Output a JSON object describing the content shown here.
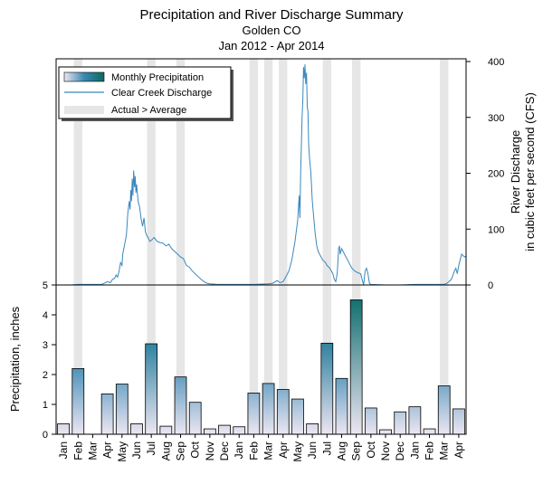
{
  "chart_data": {
    "type": "bar+line",
    "title": "Precipitation and River Discharge Summary",
    "subtitle": "Golden CO",
    "period": "Jan 2012 - Apr 2014",
    "legend": {
      "position": "top-left",
      "entries": [
        "Monthly Precipitation",
        "Clear Creek Discharge",
        "Actual > Average"
      ]
    },
    "months": [
      "Jan",
      "Feb",
      "Mar",
      "Apr",
      "May",
      "Jun",
      "Jul",
      "Aug",
      "Sep",
      "Oct",
      "Nov",
      "Dec",
      "Jan",
      "Feb",
      "Mar",
      "Apr",
      "May",
      "Jun",
      "Jul",
      "Aug",
      "Sep",
      "Oct",
      "Nov",
      "Dec",
      "Jan",
      "Feb",
      "Mar",
      "Apr"
    ],
    "precipitation": {
      "name": "Monthly Precipitation",
      "ylabel": "Precipitation, inches",
      "ylim": [
        0,
        5
      ],
      "yticks": [
        0,
        1,
        2,
        3,
        4,
        5
      ],
      "values": [
        0.35,
        2.2,
        0.0,
        1.35,
        1.68,
        0.35,
        3.03,
        0.27,
        1.92,
        1.07,
        0.18,
        0.3,
        0.25,
        1.38,
        1.7,
        1.5,
        1.18,
        0.35,
        3.05,
        1.87,
        4.5,
        0.88,
        0.15,
        0.75,
        0.92,
        0.18,
        1.62,
        0.85
      ]
    },
    "discharge": {
      "name": "Clear Creek Discharge",
      "ylabel_line1": "River Discharge",
      "ylabel_line2": "in cubic feet per second (CFS)",
      "ylim": [
        0,
        400
      ],
      "yticks": [
        0,
        100,
        200,
        300,
        400
      ],
      "points": [
        [
          0,
          0
        ],
        [
          0.5,
          0
        ],
        [
          1,
          1
        ],
        [
          2,
          1
        ],
        [
          2.6,
          1
        ],
        [
          2.8,
          3
        ],
        [
          3.0,
          6
        ],
        [
          3.2,
          4
        ],
        [
          3.35,
          10
        ],
        [
          3.5,
          12
        ],
        [
          3.6,
          18
        ],
        [
          3.7,
          14
        ],
        [
          3.8,
          25
        ],
        [
          3.9,
          40
        ],
        [
          4.0,
          35
        ],
        [
          4.05,
          55
        ],
        [
          4.15,
          68
        ],
        [
          4.2,
          75
        ],
        [
          4.3,
          90
        ],
        [
          4.35,
          110
        ],
        [
          4.4,
          130
        ],
        [
          4.5,
          150
        ],
        [
          4.55,
          135
        ],
        [
          4.6,
          170
        ],
        [
          4.65,
          150
        ],
        [
          4.7,
          190
        ],
        [
          4.75,
          160
        ],
        [
          4.8,
          205
        ],
        [
          4.85,
          175
        ],
        [
          4.9,
          195
        ],
        [
          4.95,
          165
        ],
        [
          5.0,
          180
        ],
        [
          5.1,
          150
        ],
        [
          5.2,
          140
        ],
        [
          5.3,
          120
        ],
        [
          5.4,
          105
        ],
        [
          5.5,
          120
        ],
        [
          5.6,
          95
        ],
        [
          5.7,
          88
        ],
        [
          5.8,
          84
        ],
        [
          5.9,
          78
        ],
        [
          6.0,
          80
        ],
        [
          6.2,
          85
        ],
        [
          6.4,
          78
        ],
        [
          6.6,
          76
        ],
        [
          6.8,
          75
        ],
        [
          7.0,
          70
        ],
        [
          7.2,
          73
        ],
        [
          7.4,
          65
        ],
        [
          7.6,
          60
        ],
        [
          7.8,
          55
        ],
        [
          8.0,
          50
        ],
        [
          8.2,
          47
        ],
        [
          8.4,
          35
        ],
        [
          8.6,
          32
        ],
        [
          8.8,
          25
        ],
        [
          9.0,
          20
        ],
        [
          9.2,
          15
        ],
        [
          9.4,
          10
        ],
        [
          9.6,
          6
        ],
        [
          9.8,
          3
        ],
        [
          10.0,
          2
        ],
        [
          10.5,
          1
        ],
        [
          11,
          1
        ],
        [
          12,
          1
        ],
        [
          13,
          1
        ],
        [
          14,
          2
        ],
        [
          14.3,
          3
        ],
        [
          14.6,
          8
        ],
        [
          14.8,
          4
        ],
        [
          15.0,
          6
        ],
        [
          15.2,
          15
        ],
        [
          15.4,
          25
        ],
        [
          15.5,
          35
        ],
        [
          15.6,
          45
        ],
        [
          15.7,
          60
        ],
        [
          15.8,
          75
        ],
        [
          15.9,
          95
        ],
        [
          16.0,
          115
        ],
        [
          16.1,
          160
        ],
        [
          16.15,
          120
        ],
        [
          16.2,
          200
        ],
        [
          16.25,
          250
        ],
        [
          16.3,
          300
        ],
        [
          16.35,
          330
        ],
        [
          16.4,
          390
        ],
        [
          16.45,
          370
        ],
        [
          16.5,
          395
        ],
        [
          16.55,
          360
        ],
        [
          16.6,
          380
        ],
        [
          16.65,
          320
        ],
        [
          16.7,
          310
        ],
        [
          16.75,
          250
        ],
        [
          16.8,
          230
        ],
        [
          16.9,
          200
        ],
        [
          17.0,
          150
        ],
        [
          17.1,
          120
        ],
        [
          17.2,
          90
        ],
        [
          17.3,
          70
        ],
        [
          17.4,
          60
        ],
        [
          17.5,
          55
        ],
        [
          17.7,
          45
        ],
        [
          17.9,
          40
        ],
        [
          18.0,
          35
        ],
        [
          18.2,
          30
        ],
        [
          18.4,
          20
        ],
        [
          18.5,
          10
        ],
        [
          18.6,
          6
        ],
        [
          18.7,
          20
        ],
        [
          18.8,
          65
        ],
        [
          18.85,
          70
        ],
        [
          18.9,
          55
        ],
        [
          19.0,
          65
        ],
        [
          19.1,
          60
        ],
        [
          19.2,
          55
        ],
        [
          19.3,
          50
        ],
        [
          19.4,
          45
        ],
        [
          19.5,
          40
        ],
        [
          19.7,
          30
        ],
        [
          19.9,
          25
        ],
        [
          20.1,
          22
        ],
        [
          20.3,
          20
        ],
        [
          20.4,
          10
        ],
        [
          20.5,
          0
        ],
        [
          20.6,
          25
        ],
        [
          20.7,
          30
        ],
        [
          20.8,
          20
        ],
        [
          20.9,
          3
        ],
        [
          21,
          1
        ],
        [
          22,
          0
        ],
        [
          23,
          0
        ],
        [
          24,
          1
        ],
        [
          25,
          1
        ],
        [
          26,
          1
        ],
        [
          26.2,
          3
        ],
        [
          26.5,
          10
        ],
        [
          26.7,
          25
        ],
        [
          26.8,
          30
        ],
        [
          26.9,
          20
        ],
        [
          27.0,
          35
        ],
        [
          27.2,
          55
        ],
        [
          27.4,
          50
        ],
        [
          27.5,
          52
        ]
      ]
    },
    "above_average_months": [
      1,
      6,
      8,
      13,
      14,
      15,
      18,
      20,
      26
    ],
    "colors": {
      "bar_low": "#ede6f2",
      "bar_mid": "#3a88b2",
      "bar_high": "#0b6a5f",
      "discharge_line": "#3a87be",
      "highlight": "#e6e6e6"
    }
  }
}
